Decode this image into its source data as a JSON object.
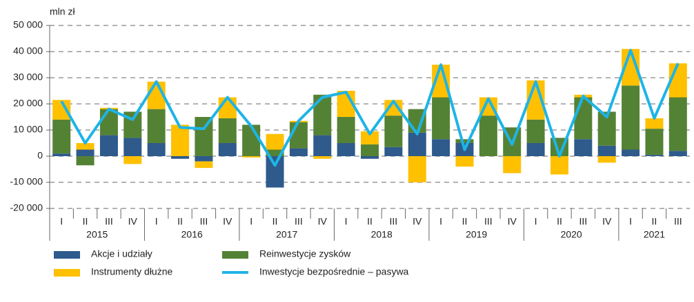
{
  "chart_data": {
    "type": "bar",
    "y_label": "mln zł",
    "categories": [
      "I",
      "II",
      "III",
      "IV",
      "I",
      "II",
      "III",
      "IV",
      "I",
      "II",
      "III",
      "IV",
      "I",
      "II",
      "III",
      "IV",
      "I",
      "II",
      "III",
      "IV",
      "I",
      "II",
      "III",
      "IV",
      "I",
      "II",
      "III"
    ],
    "years": [
      "2015",
      "2016",
      "2017",
      "2018",
      "2019",
      "2020",
      "2021"
    ],
    "series": [
      {
        "name": "Akcje i udziały",
        "color": "#2e5a8c",
        "values": [
          1000,
          2500,
          8000,
          7000,
          5000,
          -1000,
          -2000,
          5000,
          0,
          -12000,
          3000,
          8000,
          5000,
          -1000,
          3500,
          9000,
          6500,
          5000,
          0,
          0,
          5000,
          0,
          6500,
          4000,
          2500,
          500,
          2000
        ]
      },
      {
        "name": "Reinwestycje zysków",
        "color": "#548235",
        "values": [
          13000,
          -3500,
          10000,
          10000,
          13000,
          0,
          15000,
          9500,
          12000,
          2500,
          10000,
          15500,
          10000,
          4500,
          12000,
          9000,
          16000,
          1500,
          15500,
          11000,
          9000,
          7000,
          16000,
          13000,
          24500,
          10000,
          20500
        ]
      },
      {
        "name": "Instrumenty dłużne",
        "color": "#ffc000",
        "values": [
          7500,
          2500,
          500,
          -3000,
          10500,
          12000,
          -2500,
          8000,
          -500,
          6000,
          500,
          -1000,
          10000,
          5000,
          6000,
          -10000,
          12500,
          -4000,
          7000,
          -6500,
          15000,
          -7000,
          1000,
          -2500,
          14000,
          4000,
          13000
        ]
      },
      {
        "name": "Inwestycje bezpośrednie – pasywa",
        "color": "#1eb4e6",
        "type": "line",
        "values": [
          21000,
          5000,
          18000,
          14000,
          28500,
          11000,
          10500,
          22500,
          11500,
          -3500,
          13500,
          22500,
          24500,
          8500,
          21000,
          8500,
          35000,
          2500,
          22000,
          4500,
          28500,
          0,
          23000,
          15000,
          40500,
          14500,
          35500
        ]
      }
    ],
    "ylim": [
      -20000,
      50000
    ],
    "yticks": [
      {
        "value": -20000,
        "label": "-20 000"
      },
      {
        "value": -10000,
        "label": "-10 000"
      },
      0,
      {
        "value": 10000,
        "label": "10 000"
      },
      {
        "value": 20000,
        "label": "20 000"
      },
      {
        "value": 30000,
        "label": "30 000"
      },
      {
        "value": 40000,
        "label": "40 000"
      },
      {
        "value": 50000,
        "label": "50 000"
      }
    ],
    "grid": true
  }
}
